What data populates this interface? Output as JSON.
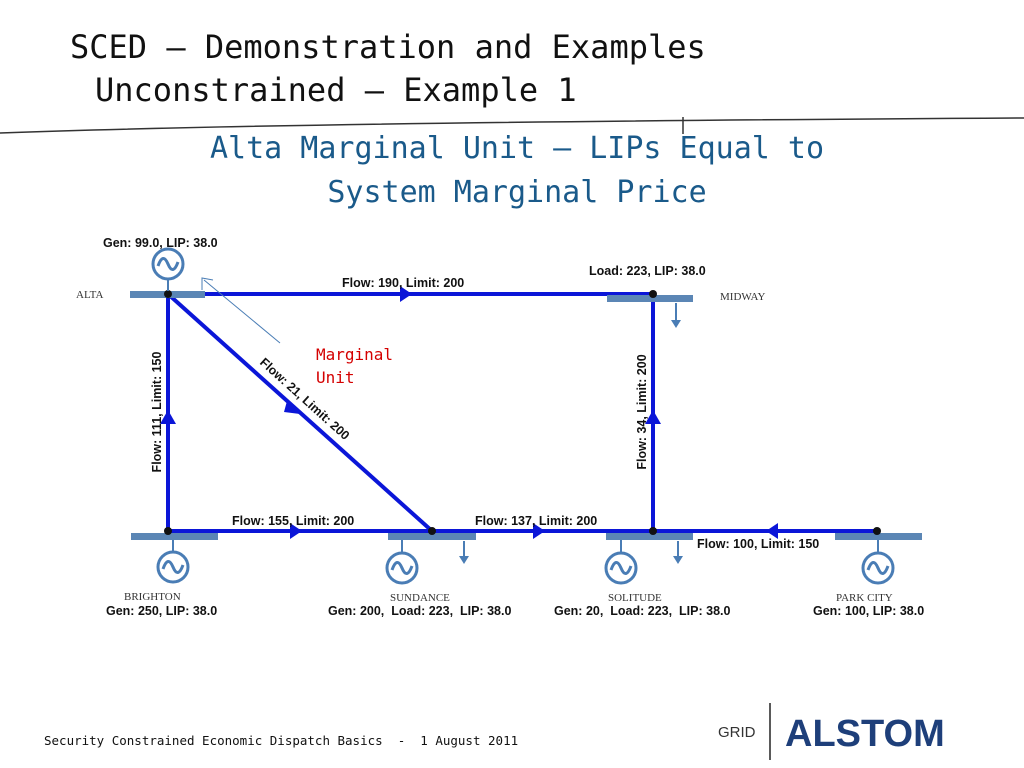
{
  "header": {
    "title": [
      "SCED – Demonstration and Examples",
      "Unconstrained – Example 1"
    ]
  },
  "subtitle": [
    "Alta Marginal Unit – LIPs Equal to",
    "System Marginal Price"
  ],
  "annotation": [
    "Marginal",
    "Unit"
  ],
  "nodes": [
    {
      "name": "ALTA",
      "info": "Gen: 99.0, LIP: 38.0"
    },
    {
      "name": "MIDWAY",
      "info": "Load: 223, LIP: 38.0"
    },
    {
      "name": "BRIGHTON",
      "info": "Gen: 250, LIP: 38.0"
    },
    {
      "name": "SUNDANCE",
      "info": "Gen: 200,  Load: 223,  LIP: 38.0"
    },
    {
      "name": "SOLITUDE",
      "info": "Gen: 20,  Load: 223,  LIP: 38.0"
    },
    {
      "name": "PARK CITY",
      "info": "Gen: 100, LIP: 38.0"
    }
  ],
  "lines": [
    {
      "label": "Flow: 190, Limit: 200"
    },
    {
      "label": "Flow: 111, Limit: 150"
    },
    {
      "label": "Flow: 21, Limit: 200"
    },
    {
      "label": "Flow: 34, Limit: 200"
    },
    {
      "label": "Flow: 155, Limit: 200"
    },
    {
      "label": "Flow: 137, Limit: 200"
    },
    {
      "label": "Flow: 100, Limit: 150"
    }
  ],
  "footer": {
    "text": "Security Constrained Economic Dispatch Basics  -  1 August 2011",
    "logo_left": "GRID",
    "logo": "ALSTOM"
  }
}
